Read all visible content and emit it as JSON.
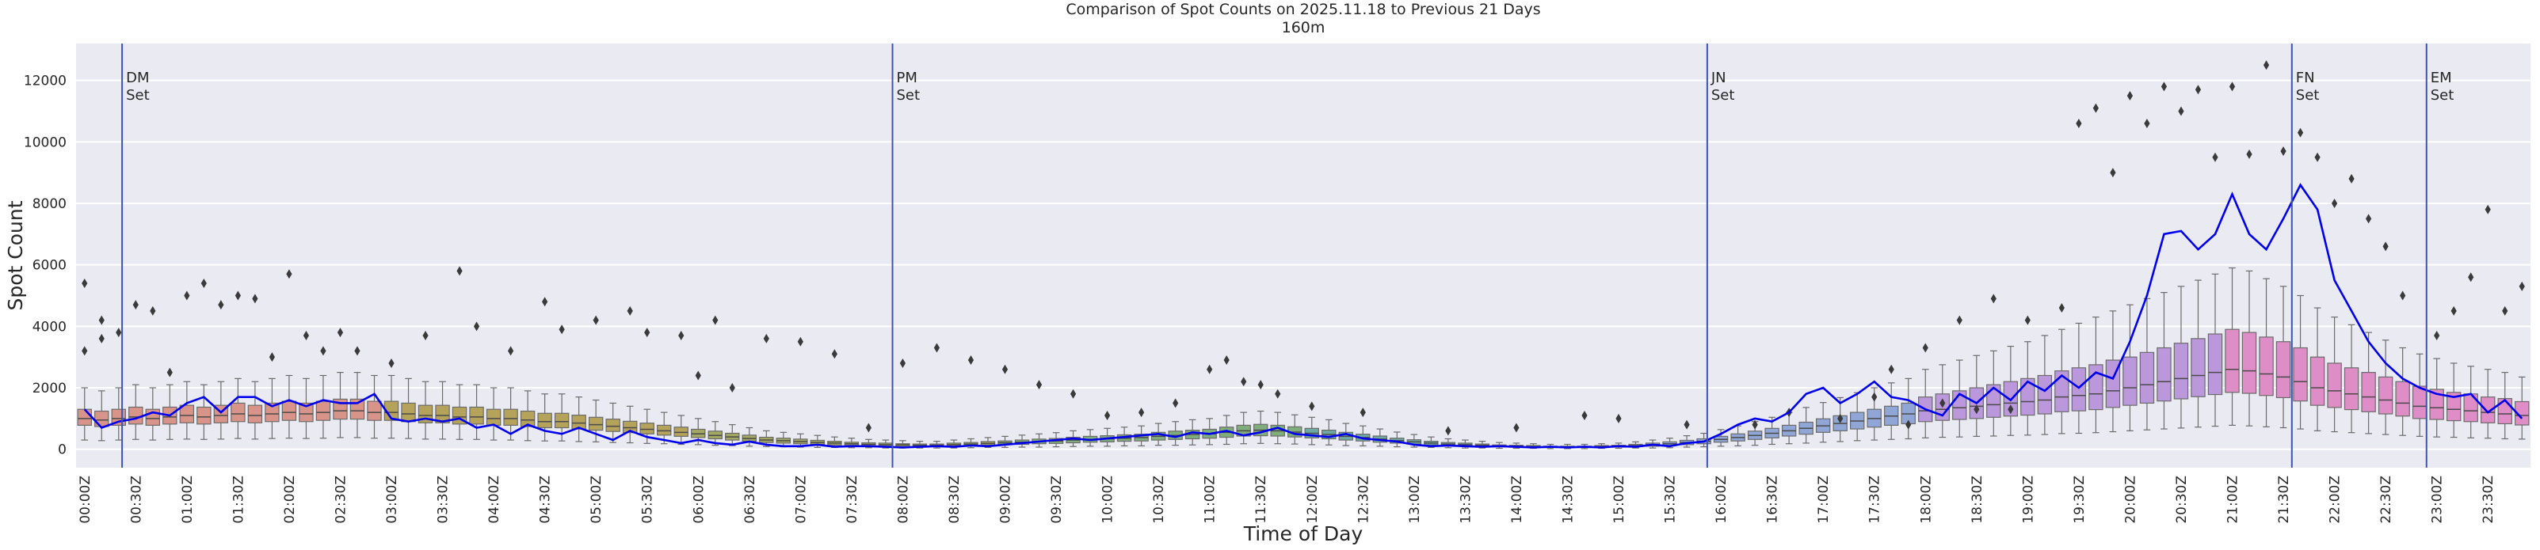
{
  "chart_data": {
    "type": "box",
    "title": "Comparison of Spot Counts on 2025.11.18 to Previous 21 Days",
    "subtitle": "160m",
    "x_label": "Time of Day",
    "y_label": "Spot Count",
    "categories": [
      "00:00Z",
      null,
      null,
      "00:30Z",
      null,
      null,
      "01:00Z",
      null,
      null,
      "01:30Z",
      null,
      null,
      "02:00Z",
      null,
      null,
      "02:30Z",
      null,
      null,
      "03:00Z",
      null,
      null,
      "03:30Z",
      null,
      null,
      "04:00Z",
      null,
      null,
      "04:30Z",
      null,
      null,
      "05:00Z",
      null,
      null,
      "05:30Z",
      null,
      null,
      "06:00Z",
      null,
      null,
      "06:30Z",
      null,
      null,
      "07:00Z",
      null,
      null,
      "07:30Z",
      null,
      null,
      "08:00Z",
      null,
      null,
      "08:30Z",
      null,
      null,
      "09:00Z",
      null,
      null,
      "09:30Z",
      null,
      null,
      "10:00Z",
      null,
      null,
      "10:30Z",
      null,
      null,
      "11:00Z",
      null,
      null,
      "11:30Z",
      null,
      null,
      "12:00Z",
      null,
      null,
      "12:30Z",
      null,
      null,
      "13:00Z",
      null,
      null,
      "13:30Z",
      null,
      null,
      "14:00Z",
      null,
      null,
      "14:30Z",
      null,
      null,
      "15:00Z",
      null,
      null,
      "15:30Z",
      null,
      null,
      "16:00Z",
      null,
      null,
      "16:30Z",
      null,
      null,
      "17:00Z",
      null,
      null,
      "17:30Z",
      null,
      null,
      "18:00Z",
      null,
      null,
      "18:30Z",
      null,
      null,
      "19:00Z",
      null,
      null,
      "19:30Z",
      null,
      null,
      "20:00Z",
      null,
      null,
      "20:30Z",
      null,
      null,
      "21:00Z",
      null,
      null,
      "21:30Z",
      null,
      null,
      "22:00Z",
      null,
      null,
      "22:30Z",
      null,
      null,
      "23:00Z",
      null,
      null,
      "23:30Z",
      null,
      null
    ],
    "ylim": [
      -600,
      13200
    ],
    "yticks": [
      0,
      2000,
      4000,
      6000,
      8000,
      10000,
      12000
    ],
    "grid": true,
    "box_palette": [
      "#d9948a",
      "#b5a35c",
      "#a3a862",
      "#80ad7c",
      "#6eaaa2",
      "#8fa6d6",
      "#bb98dc",
      "#de8dc6"
    ],
    "boxes": {
      "whislo": [
        300,
        280,
        300,
        320,
        300,
        320,
        330,
        320,
        330,
        350,
        330,
        350,
        360,
        350,
        360,
        380,
        380,
        360,
        360,
        350,
        330,
        330,
        320,
        320,
        300,
        300,
        280,
        270,
        270,
        250,
        240,
        220,
        210,
        190,
        180,
        160,
        150,
        130,
        120,
        100,
        90,
        80,
        70,
        60,
        60,
        50,
        50,
        40,
        40,
        40,
        40,
        40,
        50,
        60,
        60,
        70,
        70,
        80,
        90,
        100,
        100,
        110,
        110,
        130,
        130,
        140,
        150,
        160,
        180,
        190,
        180,
        170,
        150,
        140,
        120,
        110,
        100,
        80,
        70,
        60,
        50,
        40,
        40,
        30,
        30,
        30,
        20,
        20,
        20,
        30,
        30,
        40,
        40,
        50,
        70,
        80,
        100,
        110,
        130,
        160,
        180,
        200,
        230,
        250,
        280,
        300,
        320,
        340,
        370,
        390,
        400,
        420,
        430,
        450,
        460,
        480,
        510,
        520,
        540,
        570,
        600,
        630,
        660,
        690,
        720,
        750,
        780,
        760,
        730,
        700,
        660,
        600,
        570,
        540,
        510,
        480,
        450,
        420,
        400,
        390,
        370,
        360,
        340,
        330
      ],
      "q1": [
        780,
        740,
        780,
        820,
        780,
        820,
        860,
        820,
        860,
        900,
        860,
        900,
        940,
        900,
        940,
        980,
        980,
        940,
        940,
        900,
        860,
        860,
        820,
        820,
        780,
        780,
        740,
        700,
        700,
        660,
        620,
        580,
        540,
        500,
        460,
        420,
        380,
        340,
        300,
        260,
        220,
        200,
        180,
        160,
        140,
        130,
        110,
        100,
        90,
        90,
        90,
        100,
        120,
        130,
        150,
        160,
        180,
        190,
        210,
        230,
        240,
        260,
        270,
        300,
        320,
        340,
        360,
        390,
        430,
        440,
        430,
        400,
        370,
        340,
        300,
        270,
        230,
        200,
        170,
        140,
        120,
        100,
        90,
        80,
        70,
        60,
        55,
        55,
        55,
        60,
        70,
        85,
        100,
        120,
        150,
        180,
        230,
        270,
        320,
        370,
        430,
        490,
        550,
        600,
        660,
        720,
        780,
        830,
        900,
        940,
        970,
        1000,
        1040,
        1080,
        1110,
        1150,
        1220,
        1250,
        1290,
        1360,
        1430,
        1500,
        1570,
        1640,
        1710,
        1780,
        1850,
        1820,
        1750,
        1680,
        1570,
        1430,
        1360,
        1290,
        1220,
        1150,
        1080,
        1000,
        970,
        930,
        900,
        860,
        830,
        790
      ],
      "median": [
        1000,
        950,
        1000,
        1050,
        1000,
        1050,
        1100,
        1050,
        1100,
        1150,
        1100,
        1150,
        1200,
        1150,
        1200,
        1250,
        1250,
        1200,
        1200,
        1150,
        1100,
        1100,
        1050,
        1050,
        1000,
        1000,
        950,
        900,
        900,
        850,
        800,
        750,
        700,
        650,
        600,
        550,
        500,
        450,
        400,
        350,
        300,
        280,
        250,
        220,
        200,
        180,
        160,
        150,
        140,
        130,
        130,
        150,
        170,
        190,
        210,
        230,
        250,
        270,
        300,
        320,
        340,
        360,
        380,
        420,
        450,
        480,
        500,
        550,
        600,
        620,
        600,
        560,
        520,
        480,
        420,
        380,
        330,
        280,
        240,
        200,
        170,
        150,
        130,
        110,
        100,
        90,
        80,
        80,
        80,
        90,
        100,
        120,
        150,
        180,
        220,
        260,
        320,
        380,
        450,
        520,
        600,
        680,
        760,
        840,
        920,
        1000,
        1080,
        1150,
        1250,
        1300,
        1350,
        1400,
        1450,
        1500,
        1550,
        1600,
        1700,
        1750,
        1800,
        1900,
        2000,
        2100,
        2200,
        2300,
        2400,
        2500,
        2600,
        2550,
        2450,
        2350,
        2200,
        2000,
        1900,
        1800,
        1700,
        1600,
        1500,
        1400,
        1350,
        1300,
        1250,
        1200,
        1150,
        1100
      ],
      "q3": [
        1300,
        1240,
        1300,
        1370,
        1300,
        1370,
        1430,
        1370,
        1430,
        1500,
        1430,
        1500,
        1560,
        1500,
        1560,
        1630,
        1630,
        1560,
        1560,
        1500,
        1430,
        1430,
        1370,
        1370,
        1300,
        1300,
        1240,
        1170,
        1170,
        1110,
        1040,
        980,
        910,
        850,
        780,
        720,
        650,
        590,
        520,
        460,
        390,
        360,
        330,
        290,
        260,
        230,
        210,
        200,
        180,
        170,
        170,
        200,
        220,
        250,
        270,
        300,
        330,
        350,
        390,
        420,
        440,
        470,
        490,
        550,
        590,
        620,
        650,
        720,
        780,
        810,
        780,
        730,
        680,
        620,
        550,
        490,
        430,
        360,
        310,
        260,
        220,
        200,
        170,
        140,
        130,
        120,
        100,
        100,
        100,
        120,
        130,
        160,
        200,
        240,
        290,
        340,
        420,
        500,
        590,
        680,
        780,
        880,
        990,
        1090,
        1200,
        1300,
        1400,
        1500,
        1700,
        1800,
        1900,
        2000,
        2100,
        2200,
        2300,
        2400,
        2550,
        2650,
        2750,
        2900,
        3000,
        3150,
        3300,
        3450,
        3600,
        3750,
        3900,
        3800,
        3650,
        3500,
        3300,
        3000,
        2800,
        2650,
        2500,
        2350,
        2200,
        2050,
        1950,
        1850,
        1800,
        1700,
        1650,
        1550
      ],
      "whishi": [
        2000,
        1900,
        2000,
        2100,
        2000,
        2100,
        2200,
        2100,
        2200,
        2300,
        2200,
        2300,
        2400,
        2300,
        2400,
        2500,
        2500,
        2400,
        2400,
        2300,
        2200,
        2200,
        2100,
        2100,
        2000,
        2000,
        1900,
        1800,
        1800,
        1700,
        1600,
        1500,
        1400,
        1300,
        1200,
        1100,
        1000,
        900,
        800,
        700,
        600,
        550,
        500,
        450,
        400,
        360,
        320,
        300,
        280,
        260,
        260,
        300,
        340,
        380,
        420,
        460,
        500,
        540,
        600,
        640,
        680,
        720,
        760,
        840,
        900,
        960,
        1000,
        1100,
        1200,
        1240,
        1200,
        1120,
        1040,
        960,
        840,
        760,
        660,
        560,
        480,
        400,
        340,
        300,
        260,
        220,
        200,
        180,
        160,
        160,
        160,
        180,
        200,
        240,
        300,
        360,
        440,
        520,
        640,
        760,
        900,
        1040,
        1200,
        1360,
        1520,
        1680,
        1840,
        2000,
        2160,
        2300,
        2600,
        2750,
        2900,
        3050,
        3200,
        3350,
        3500,
        3700,
        3900,
        4100,
        4300,
        4500,
        4700,
        4900,
        5100,
        5300,
        5500,
        5700,
        5900,
        5800,
        5550,
        5300,
        5000,
        4600,
        4300,
        4050,
        3800,
        3550,
        3300,
        3100,
        2950,
        2800,
        2700,
        2600,
        2500,
        2350
      ]
    },
    "line": {
      "color": "#0000ee",
      "values": [
        1300,
        700,
        900,
        1000,
        1200,
        1100,
        1500,
        1700,
        1200,
        1700,
        1700,
        1400,
        1600,
        1400,
        1600,
        1500,
        1500,
        1800,
        1000,
        900,
        1000,
        900,
        1000,
        700,
        800,
        500,
        800,
        600,
        500,
        700,
        500,
        300,
        600,
        400,
        300,
        200,
        300,
        200,
        150,
        250,
        150,
        100,
        100,
        150,
        80,
        100,
        100,
        80,
        60,
        80,
        100,
        80,
        120,
        100,
        150,
        200,
        250,
        300,
        350,
        300,
        350,
        400,
        450,
        500,
        400,
        550,
        500,
        600,
        450,
        550,
        700,
        500,
        450,
        400,
        500,
        350,
        300,
        250,
        150,
        100,
        120,
        100,
        80,
        100,
        80,
        60,
        80,
        60,
        80,
        60,
        100,
        80,
        150,
        100,
        200,
        250,
        500,
        800,
        1000,
        900,
        1200,
        1800,
        2000,
        1500,
        1800,
        2200,
        1700,
        1600,
        1300,
        1100,
        1800,
        1500,
        2000,
        1600,
        2200,
        1900,
        2400,
        2000,
        2500,
        2300,
        3500,
        5000,
        7000,
        7100,
        6500,
        7000,
        8300,
        7000,
        6500,
        7500,
        8600,
        7800,
        5500,
        4500,
        3500,
        2800,
        2300,
        2000,
        1800,
        1700,
        1800,
        1200,
        1600,
        1000
      ]
    },
    "fliers": {
      "x": [
        0,
        0,
        1,
        1,
        2,
        3,
        4,
        5,
        6,
        7,
        8,
        9,
        10,
        11,
        12,
        13,
        14,
        15,
        16,
        18,
        20,
        22,
        23,
        25,
        27,
        28,
        30,
        32,
        33,
        35,
        36,
        37,
        38,
        40,
        42,
        44,
        46,
        48,
        50,
        52,
        54,
        56,
        58,
        60,
        62,
        64,
        66,
        67,
        68,
        69,
        70,
        72,
        75,
        80,
        84,
        88,
        90,
        94,
        98,
        100,
        103,
        105,
        106,
        107,
        108,
        109,
        110,
        111,
        112,
        113,
        114,
        116,
        118,
        119,
        117,
        120,
        121,
        122,
        123,
        124,
        125,
        126,
        127,
        128,
        129,
        130,
        131,
        132,
        133,
        134,
        135,
        136,
        138,
        139,
        140,
        141,
        142,
        143
      ],
      "y": [
        5400,
        3200,
        3600,
        4200,
        3800,
        4700,
        4500,
        2500,
        5000,
        5400,
        4700,
        5000,
        4900,
        3000,
        5700,
        3700,
        3200,
        3800,
        3200,
        2800,
        3700,
        5800,
        4000,
        3200,
        4800,
        3900,
        4200,
        4500,
        3800,
        3700,
        2400,
        4200,
        2000,
        3600,
        3500,
        3100,
        700,
        2800,
        3300,
        2900,
        2600,
        2100,
        1800,
        1100,
        1200,
        1500,
        2600,
        2900,
        2200,
        2100,
        1800,
        1400,
        1200,
        600,
        700,
        1100,
        1000,
        800,
        800,
        1200,
        1000,
        1700,
        2600,
        800,
        3300,
        1500,
        4200,
        1300,
        4900,
        1300,
        4200,
        4600,
        11100,
        9000,
        10600,
        11500,
        10600,
        11800,
        11000,
        11700,
        9500,
        11800,
        9600,
        12500,
        9700,
        10300,
        9500,
        8000,
        8800,
        7500,
        6600,
        5000,
        3700,
        4500,
        5600,
        7800,
        4500,
        5300
      ]
    },
    "vlines": [
      {
        "x": 2.2,
        "label": [
          "DM",
          "Set"
        ]
      },
      {
        "x": 47.4,
        "label": [
          "PM",
          "Set"
        ]
      },
      {
        "x": 95.2,
        "label": [
          "JN",
          "Set"
        ]
      },
      {
        "x": 129.5,
        "label": [
          "FN",
          "Set"
        ]
      },
      {
        "x": 137.4,
        "label": [
          "EM",
          "Set"
        ]
      }
    ],
    "vline_color": "#3b55b5"
  }
}
